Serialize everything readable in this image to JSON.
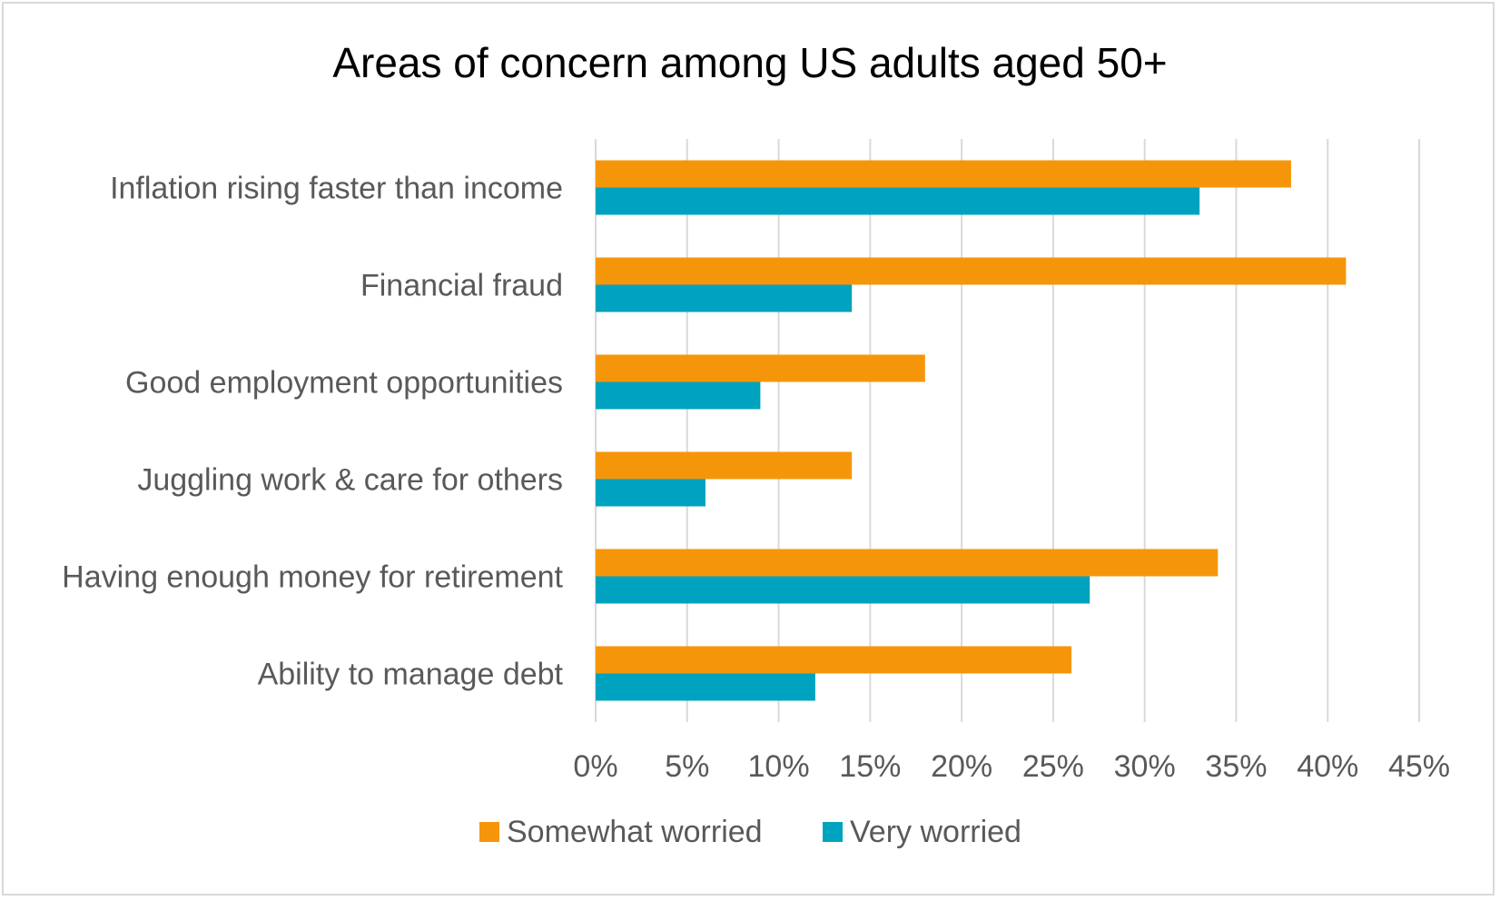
{
  "chart_data": {
    "type": "bar",
    "orientation": "horizontal",
    "title": "Areas of concern among US adults aged 50+",
    "categories": [
      "Inflation rising faster than income",
      "Financial fraud",
      "Good employment opportunities",
      "Juggling work & care for others",
      "Having enough money for retirement",
      "Ability to manage debt"
    ],
    "series": [
      {
        "name": "Somewhat worried",
        "color": "#F5960A",
        "values": [
          38,
          41,
          18,
          14,
          34,
          26
        ]
      },
      {
        "name": "Very worried",
        "color": "#00A3BF",
        "values": [
          33,
          14,
          9,
          6,
          27,
          12
        ]
      }
    ],
    "xlim": [
      0,
      45
    ],
    "xticks": [
      0,
      5,
      10,
      15,
      20,
      25,
      30,
      35,
      40,
      45
    ],
    "xtick_labels": [
      "0%",
      "5%",
      "10%",
      "15%",
      "20%",
      "25%",
      "30%",
      "35%",
      "40%",
      "45%"
    ],
    "grid": "vertical",
    "gridline_color": "#D9D9D9",
    "legend_position": "bottom"
  }
}
